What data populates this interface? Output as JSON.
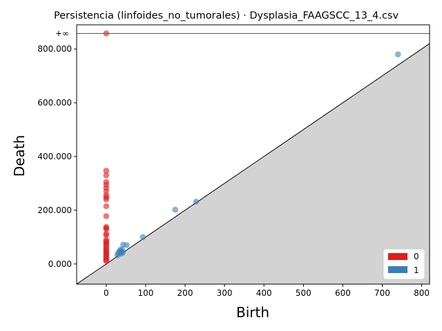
{
  "chart_data": {
    "type": "scatter",
    "title": "Persistencia (linfoides_no_tumorales) · Dysplasia_FAAGSCC_13_4.csv",
    "xlabel": "Birth",
    "ylabel": "Death",
    "xlim": [
      -75,
      820
    ],
    "ylim": [
      -75,
      890
    ],
    "x_ticks": [
      0,
      100,
      200,
      300,
      400,
      500,
      600,
      700,
      800
    ],
    "x_tick_labels": [
      "0",
      "100",
      "200",
      "300",
      "400",
      "500",
      "600",
      "700",
      "800"
    ],
    "y_ticks": [
      0,
      200,
      400,
      600,
      800
    ],
    "y_tick_labels": [
      "0.000",
      "200.000",
      "400.000",
      "600.000",
      "800.000"
    ],
    "infinity_value": 858,
    "infinity_label": "+∞",
    "diagonal": true,
    "legend_position": "lower-right",
    "series": [
      {
        "name": "0",
        "color": "#e41a1c",
        "points": [
          [
            0,
            858
          ],
          [
            0,
            347
          ],
          [
            0,
            330
          ],
          [
            0,
            305
          ],
          [
            0,
            295
          ],
          [
            0,
            283
          ],
          [
            0,
            270
          ],
          [
            0,
            255
          ],
          [
            0,
            248
          ],
          [
            0,
            240
          ],
          [
            0,
            215
          ],
          [
            0,
            178
          ],
          [
            0,
            138
          ],
          [
            0,
            133
          ],
          [
            0,
            130
          ],
          [
            0,
            112
          ],
          [
            0,
            108
          ],
          [
            0,
            90
          ],
          [
            0,
            85
          ],
          [
            0,
            80
          ],
          [
            0,
            75
          ],
          [
            0,
            68
          ],
          [
            0,
            62
          ],
          [
            0,
            55
          ],
          [
            0,
            50
          ],
          [
            0,
            45
          ],
          [
            0,
            40
          ],
          [
            0,
            35
          ],
          [
            0,
            30
          ],
          [
            0,
            25
          ],
          [
            0,
            20
          ],
          [
            0,
            15
          ],
          [
            0,
            10
          ]
        ]
      },
      {
        "name": "1",
        "color": "#377eb8",
        "points": [
          [
            740,
            780
          ],
          [
            228,
            232
          ],
          [
            175,
            202
          ],
          [
            93,
            100
          ],
          [
            52,
            70
          ],
          [
            43,
            72
          ],
          [
            40,
            55
          ],
          [
            38,
            48
          ],
          [
            35,
            52
          ],
          [
            33,
            45
          ],
          [
            30,
            40
          ],
          [
            42,
            42
          ],
          [
            37,
            38
          ],
          [
            28,
            32
          ]
        ]
      }
    ]
  }
}
